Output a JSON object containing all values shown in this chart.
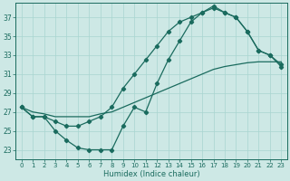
{
  "xlabel": "Humidex (Indice chaleur)",
  "bg_color": "#cde8e5",
  "line_color": "#1a6b5e",
  "grid_color": "#a8d5d0",
  "xmin": -0.5,
  "xmax": 23.5,
  "ymin": 22.0,
  "ymax": 38.5,
  "yticks": [
    23,
    25,
    27,
    29,
    31,
    33,
    35,
    37
  ],
  "xticks": [
    0,
    1,
    2,
    3,
    4,
    5,
    6,
    7,
    8,
    9,
    10,
    11,
    12,
    13,
    14,
    15,
    16,
    17,
    18,
    19,
    20,
    21,
    22,
    23
  ],
  "line1_x": [
    0,
    1,
    2,
    3,
    4,
    5,
    6,
    7,
    8,
    9,
    10,
    11,
    12,
    13,
    14,
    15,
    16,
    17,
    18,
    19,
    20,
    21,
    22,
    23
  ],
  "line1_y": [
    27.5,
    26.5,
    26.5,
    25.0,
    24.0,
    23.2,
    23.0,
    23.0,
    23.0,
    25.5,
    27.5,
    27.0,
    30.0,
    32.5,
    34.5,
    36.5,
    37.5,
    38.2,
    37.5,
    37.0,
    35.5,
    33.5,
    33.0,
    32.0
  ],
  "line2_x": [
    0,
    1,
    2,
    3,
    4,
    5,
    6,
    7,
    8,
    9,
    10,
    11,
    12,
    13,
    14,
    15,
    16,
    17,
    18,
    19,
    20,
    21,
    22,
    23
  ],
  "line2_y": [
    27.5,
    27.0,
    26.8,
    26.5,
    26.5,
    26.5,
    26.5,
    26.8,
    27.0,
    27.5,
    28.0,
    28.5,
    29.0,
    29.5,
    30.0,
    30.5,
    31.0,
    31.5,
    31.8,
    32.0,
    32.2,
    32.3,
    32.3,
    32.3
  ],
  "line3_x": [
    0,
    1,
    2,
    3,
    4,
    5,
    6,
    7,
    8,
    9,
    10,
    11,
    12,
    13,
    14,
    15,
    16,
    17,
    18,
    19,
    20,
    21,
    22,
    23
  ],
  "line3_y": [
    27.5,
    26.5,
    26.5,
    26.0,
    25.5,
    25.5,
    26.0,
    26.5,
    27.5,
    29.5,
    31.0,
    32.5,
    34.0,
    35.5,
    36.5,
    37.0,
    37.5,
    38.0,
    37.5,
    37.0,
    35.5,
    33.5,
    33.0,
    31.8
  ]
}
